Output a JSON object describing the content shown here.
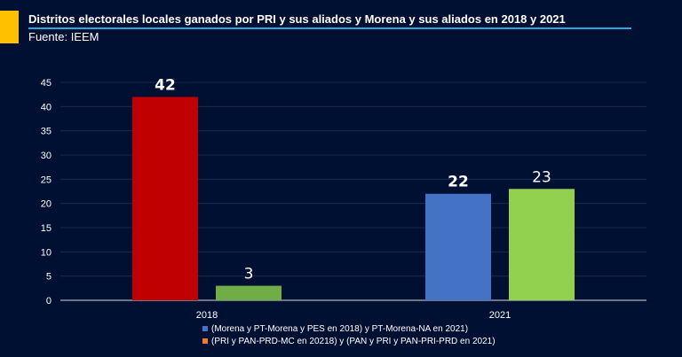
{
  "title": "Distritos electorales locales ganados por PRI y sus aliados y Morena y sus aliados en 2018 y 2021",
  "subtitle": "Fuente: IEEM",
  "colors": {
    "background": "#001033",
    "accent": "#FFC000",
    "rule": "#29ABE2"
  },
  "legend": [
    {
      "label": "(Morena y PT-Morena y PES en 2018) y PT-Morena-NA en 2021)",
      "color": "#4472C4"
    },
    {
      "label": "(PRI y PAN-PRD-MC en 20218) y (PAN y PRI y PAN-PRI-PRD en 2021)",
      "color": "#ED7D31"
    }
  ],
  "chart_data": {
    "type": "bar",
    "title": "Distritos electorales locales ganados por PRI y sus aliados y Morena y sus aliados en 2018 y 2021",
    "categories": [
      "2018",
      "2021"
    ],
    "ylim": [
      0,
      45
    ],
    "yticks": [
      0,
      5,
      10,
      15,
      20,
      25,
      30,
      35,
      40,
      45
    ],
    "grid": true,
    "legend_position": "bottom",
    "bars": [
      {
        "category": "2018",
        "slot": 0,
        "value": 42,
        "label": "42",
        "color": "#C00000",
        "label_color": "#FFFFFF",
        "label_bold": true
      },
      {
        "category": "2018",
        "slot": 1,
        "value": 3,
        "label": "3",
        "color": "#70AD47",
        "label_color": "#FFFFFF",
        "label_bold": false
      },
      {
        "category": "2021",
        "slot": 0,
        "value": 22,
        "label": "22",
        "color": "#4472C4",
        "label_color": "#FFFFFF",
        "label_bold": true
      },
      {
        "category": "2021",
        "slot": 1,
        "value": 23,
        "label": "23",
        "color": "#92D050",
        "label_color": "#FFFFFF",
        "label_bold": false
      }
    ]
  }
}
